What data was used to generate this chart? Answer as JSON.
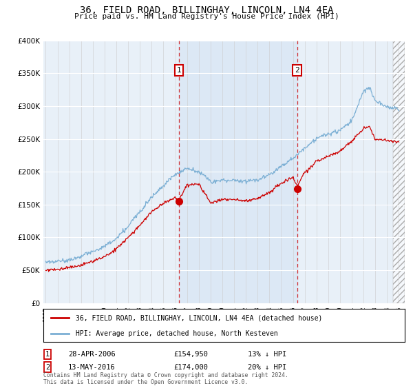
{
  "title": "36, FIELD ROAD, BILLINGHAY, LINCOLN, LN4 4EA",
  "subtitle": "Price paid vs. HM Land Registry's House Price Index (HPI)",
  "legend_line1": "36, FIELD ROAD, BILLINGHAY, LINCOLN, LN4 4EA (detached house)",
  "legend_line2": "HPI: Average price, detached house, North Kesteven",
  "sale1_date": "28-APR-2006",
  "sale1_price": "£154,950",
  "sale1_hpi": "13% ↓ HPI",
  "sale2_date": "13-MAY-2016",
  "sale2_price": "£174,000",
  "sale2_hpi": "20% ↓ HPI",
  "footer": "Contains HM Land Registry data © Crown copyright and database right 2024.\nThis data is licensed under the Open Government Licence v3.0.",
  "price_color": "#cc0000",
  "hpi_color": "#7bafd4",
  "highlight_color": "#dce8f5",
  "background_color": "#e8f0f8",
  "ylim": [
    0,
    400000
  ],
  "sale1_x": 2006.32,
  "sale1_y": 154950,
  "sale2_x": 2016.37,
  "sale2_y": 174000,
  "xmin": 1994.8,
  "xmax": 2025.5
}
